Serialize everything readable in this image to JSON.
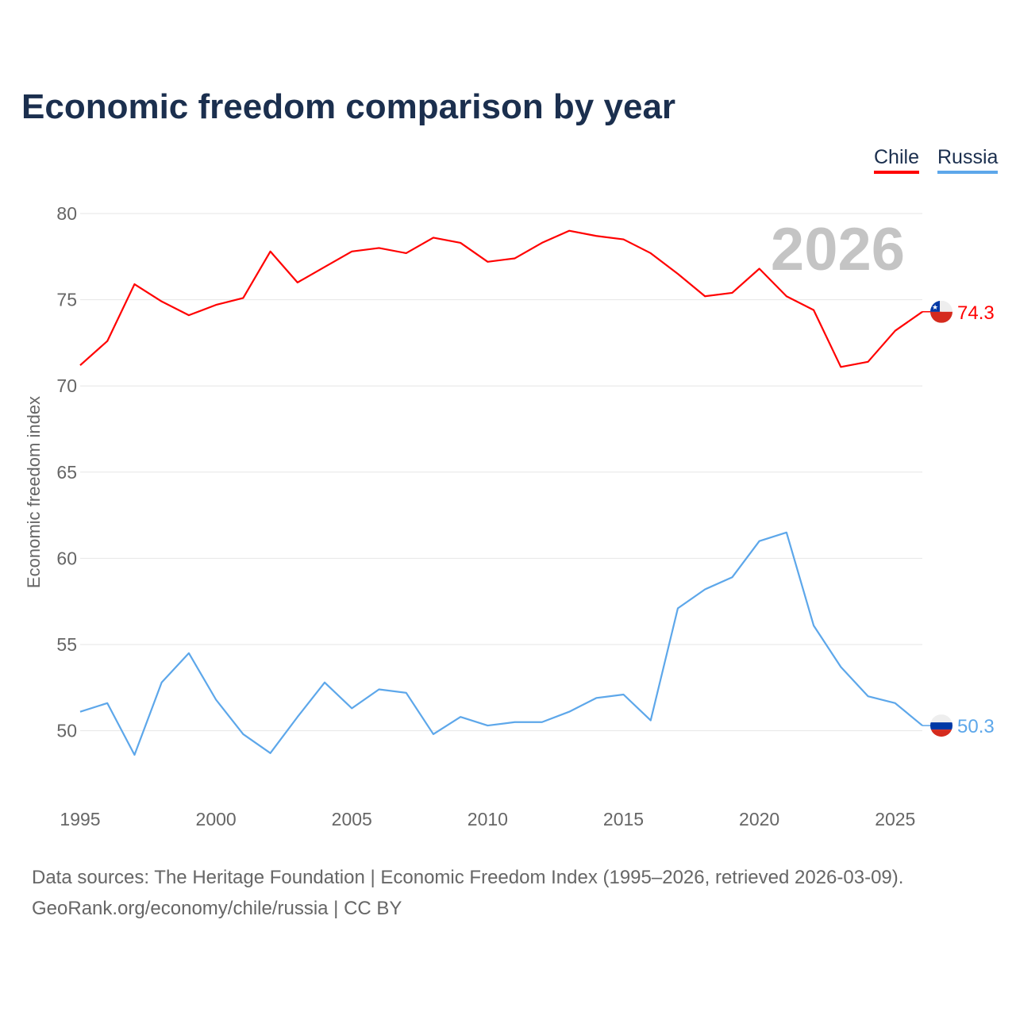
{
  "chart_data": {
    "type": "line",
    "title": "Economic freedom comparison by year",
    "xlabel": "",
    "ylabel": "Economic freedom index",
    "ylim": [
      46,
      80
    ],
    "xlim": [
      1995,
      2026
    ],
    "yticks": [
      50,
      55,
      60,
      65,
      70,
      75,
      80
    ],
    "xticks": [
      1995,
      2000,
      2005,
      2010,
      2015,
      2020,
      2025
    ],
    "grid": true,
    "legend_position": "top-right",
    "year_watermark": "2026",
    "x": [
      1995,
      1996,
      1997,
      1998,
      1999,
      2000,
      2001,
      2002,
      2003,
      2004,
      2005,
      2006,
      2007,
      2008,
      2009,
      2010,
      2011,
      2012,
      2013,
      2014,
      2015,
      2016,
      2017,
      2018,
      2019,
      2020,
      2021,
      2022,
      2023,
      2024,
      2025,
      2026
    ],
    "series": [
      {
        "name": "Chile",
        "color": "#ff0000",
        "end_label": "74.3",
        "values": [
          71.2,
          72.6,
          75.9,
          74.9,
          74.1,
          74.7,
          75.1,
          77.8,
          76.0,
          76.9,
          77.8,
          78.0,
          77.7,
          78.6,
          78.3,
          77.2,
          77.4,
          78.3,
          79.0,
          78.7,
          78.5,
          77.7,
          76.5,
          75.2,
          75.4,
          76.8,
          75.2,
          74.4,
          71.1,
          71.4,
          73.2,
          74.3
        ]
      },
      {
        "name": "Russia",
        "color": "#5da7ea",
        "end_label": "50.3",
        "values": [
          51.1,
          51.6,
          48.6,
          52.8,
          54.5,
          51.8,
          49.8,
          48.7,
          50.8,
          52.8,
          51.3,
          52.4,
          52.2,
          49.8,
          50.8,
          50.3,
          50.5,
          50.5,
          51.1,
          51.9,
          52.1,
          50.6,
          57.1,
          58.2,
          58.9,
          61.0,
          61.5,
          56.1,
          53.7,
          52.0,
          51.6,
          50.3
        ]
      }
    ]
  },
  "footer": {
    "line1": "Data sources: The Heritage Foundation | Economic Freedom Index (1995–2026, retrieved 2026-03-09).",
    "line2": "GeoRank.org/economy/chile/russia | CC BY"
  }
}
